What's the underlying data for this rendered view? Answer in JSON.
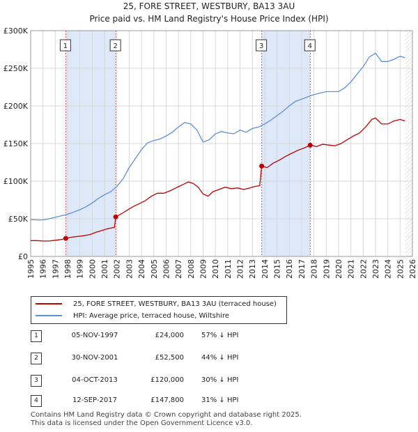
{
  "header": {
    "title": "25, FORE STREET, WESTBURY, BA13 3AU",
    "subtitle": "Price paid vs. HM Land Registry's House Price Index (HPI)"
  },
  "colors": {
    "property": "#c00000",
    "hpi": "#5b8fd6",
    "shade": "#dde8f8",
    "grid": "#d8d8d8"
  },
  "chart_data": {
    "type": "line",
    "title": "25, FORE STREET, WESTBURY, BA13 3AU",
    "xlim": [
      1995,
      2026
    ],
    "ylim": [
      0,
      300000
    ],
    "y_ticks": [
      0,
      50000,
      100000,
      150000,
      200000,
      250000,
      300000
    ],
    "y_tick_labels": [
      "£0",
      "£50K",
      "£100K",
      "£150K",
      "£200K",
      "£250K",
      "£300K"
    ],
    "x_ticks": [
      1995,
      1996,
      1997,
      1998,
      1999,
      2000,
      2001,
      2002,
      2003,
      2004,
      2005,
      2006,
      2007,
      2008,
      2009,
      2010,
      2011,
      2012,
      2013,
      2014,
      2015,
      2016,
      2017,
      2018,
      2019,
      2020,
      2021,
      2022,
      2023,
      2024,
      2025,
      2026
    ],
    "x_tick_labels": [
      "1995",
      "1996",
      "1997",
      "1998",
      "1999",
      "2000",
      "2001",
      "2002",
      "2003",
      "2004",
      "2005",
      "2006",
      "2007",
      "2008",
      "2009",
      "2010",
      "2011",
      "2012",
      "2013",
      "2014",
      "2015",
      "2016",
      "2017",
      "2018",
      "2019",
      "2020",
      "2021",
      "2022",
      "2023",
      "2024",
      "2025",
      "2026"
    ],
    "grid": true,
    "shaded_ranges": [
      [
        1997.85,
        2001.91
      ],
      [
        2013.76,
        2017.7
      ]
    ],
    "future_hatch_from": 2025.4,
    "series": [
      {
        "name": "25, FORE STREET, WESTBURY, BA13 3AU (terraced house)",
        "color": "#c00000",
        "points": [
          [
            1995.0,
            21000
          ],
          [
            1995.5,
            21000
          ],
          [
            1996.0,
            20500
          ],
          [
            1996.5,
            20500
          ],
          [
            1997.0,
            21500
          ],
          [
            1997.5,
            22500
          ],
          [
            1997.85,
            24000
          ],
          [
            1998.3,
            25500
          ],
          [
            1998.8,
            26500
          ],
          [
            1999.3,
            27500
          ],
          [
            1999.8,
            29000
          ],
          [
            2000.3,
            32000
          ],
          [
            2000.8,
            34500
          ],
          [
            2001.3,
            37000
          ],
          [
            2001.8,
            38500
          ],
          [
            2001.91,
            52500
          ],
          [
            2002.3,
            56000
          ],
          [
            2002.8,
            61000
          ],
          [
            2003.3,
            66000
          ],
          [
            2003.8,
            70000
          ],
          [
            2004.3,
            74000
          ],
          [
            2004.8,
            80000
          ],
          [
            2005.3,
            84000
          ],
          [
            2005.8,
            84000
          ],
          [
            2006.3,
            87000
          ],
          [
            2006.8,
            91000
          ],
          [
            2007.3,
            95000
          ],
          [
            2007.8,
            99000
          ],
          [
            2008.2,
            97000
          ],
          [
            2008.6,
            92000
          ],
          [
            2009.0,
            83000
          ],
          [
            2009.4,
            80000
          ],
          [
            2009.8,
            86000
          ],
          [
            2010.3,
            89000
          ],
          [
            2010.8,
            92000
          ],
          [
            2011.3,
            90000
          ],
          [
            2011.8,
            91000
          ],
          [
            2012.3,
            89000
          ],
          [
            2012.8,
            91000
          ],
          [
            2013.2,
            93000
          ],
          [
            2013.6,
            94000
          ],
          [
            2013.76,
            120000
          ],
          [
            2014.2,
            118000
          ],
          [
            2014.7,
            124000
          ],
          [
            2015.2,
            128000
          ],
          [
            2015.7,
            133000
          ],
          [
            2016.2,
            137000
          ],
          [
            2016.7,
            141000
          ],
          [
            2017.2,
            144000
          ],
          [
            2017.7,
            147800
          ],
          [
            2018.2,
            146000
          ],
          [
            2018.7,
            149000
          ],
          [
            2019.2,
            148000
          ],
          [
            2019.7,
            147000
          ],
          [
            2020.2,
            150000
          ],
          [
            2020.7,
            155000
          ],
          [
            2021.2,
            160000
          ],
          [
            2021.7,
            164000
          ],
          [
            2022.2,
            172000
          ],
          [
            2022.7,
            182000
          ],
          [
            2023.0,
            184000
          ],
          [
            2023.5,
            176000
          ],
          [
            2024.0,
            176000
          ],
          [
            2024.5,
            180000
          ],
          [
            2025.0,
            182000
          ],
          [
            2025.4,
            180000
          ]
        ]
      },
      {
        "name": "HPI: Average price, terraced house, Wiltshire",
        "color": "#5b8fd6",
        "points": [
          [
            1995.0,
            49000
          ],
          [
            1995.5,
            48500
          ],
          [
            1996.0,
            48500
          ],
          [
            1996.5,
            50000
          ],
          [
            1997.0,
            52000
          ],
          [
            1997.5,
            54000
          ],
          [
            1998.0,
            56000
          ],
          [
            1998.5,
            59000
          ],
          [
            1999.0,
            62000
          ],
          [
            1999.5,
            66000
          ],
          [
            2000.0,
            71000
          ],
          [
            2000.5,
            77000
          ],
          [
            2001.0,
            82000
          ],
          [
            2001.5,
            86000
          ],
          [
            2002.0,
            93000
          ],
          [
            2002.5,
            103000
          ],
          [
            2003.0,
            118000
          ],
          [
            2003.5,
            130000
          ],
          [
            2004.0,
            142000
          ],
          [
            2004.5,
            151000
          ],
          [
            2005.0,
            154000
          ],
          [
            2005.5,
            156000
          ],
          [
            2006.0,
            160000
          ],
          [
            2006.5,
            165000
          ],
          [
            2007.0,
            172000
          ],
          [
            2007.5,
            178000
          ],
          [
            2008.0,
            176000
          ],
          [
            2008.5,
            168000
          ],
          [
            2009.0,
            152000
          ],
          [
            2009.5,
            155000
          ],
          [
            2010.0,
            163000
          ],
          [
            2010.5,
            166000
          ],
          [
            2011.0,
            164000
          ],
          [
            2011.5,
            163000
          ],
          [
            2012.0,
            168000
          ],
          [
            2012.5,
            165000
          ],
          [
            2013.0,
            170000
          ],
          [
            2013.5,
            172000
          ],
          [
            2014.0,
            176000
          ],
          [
            2014.5,
            181000
          ],
          [
            2015.0,
            187000
          ],
          [
            2015.5,
            193000
          ],
          [
            2016.0,
            200000
          ],
          [
            2016.5,
            206000
          ],
          [
            2017.0,
            209000
          ],
          [
            2017.5,
            212000
          ],
          [
            2018.0,
            215000
          ],
          [
            2018.5,
            217000
          ],
          [
            2019.0,
            219000
          ],
          [
            2019.5,
            219000
          ],
          [
            2020.0,
            219000
          ],
          [
            2020.5,
            224000
          ],
          [
            2021.0,
            232000
          ],
          [
            2021.5,
            242000
          ],
          [
            2022.0,
            252000
          ],
          [
            2022.5,
            265000
          ],
          [
            2023.0,
            270000
          ],
          [
            2023.5,
            259000
          ],
          [
            2024.0,
            259000
          ],
          [
            2024.5,
            262000
          ],
          [
            2025.0,
            266000
          ],
          [
            2025.4,
            264000
          ]
        ]
      }
    ],
    "sales": [
      {
        "n": "1",
        "x": 1997.85,
        "price": 24000
      },
      {
        "n": "2",
        "x": 2001.91,
        "price": 52500
      },
      {
        "n": "3",
        "x": 2013.76,
        "price": 120000
      },
      {
        "n": "4",
        "x": 2017.7,
        "price": 147800
      }
    ]
  },
  "legend": {
    "property_label": "25, FORE STREET, WESTBURY, BA13 3AU (terraced house)",
    "hpi_label": "HPI: Average price, terraced house, Wiltshire"
  },
  "sales_table": [
    {
      "n": "1",
      "date": "05-NOV-1997",
      "price": "£24,000",
      "hpi": "57% ↓ HPI"
    },
    {
      "n": "2",
      "date": "30-NOV-2001",
      "price": "£52,500",
      "hpi": "44% ↓ HPI"
    },
    {
      "n": "3",
      "date": "04-OCT-2013",
      "price": "£120,000",
      "hpi": "30% ↓ HPI"
    },
    {
      "n": "4",
      "date": "12-SEP-2017",
      "price": "£147,800",
      "hpi": "31% ↓ HPI"
    }
  ],
  "footer": {
    "line1": "Contains HM Land Registry data © Crown copyright and database right 2025.",
    "line2": "This data is licensed under the Open Government Licence v3.0."
  }
}
